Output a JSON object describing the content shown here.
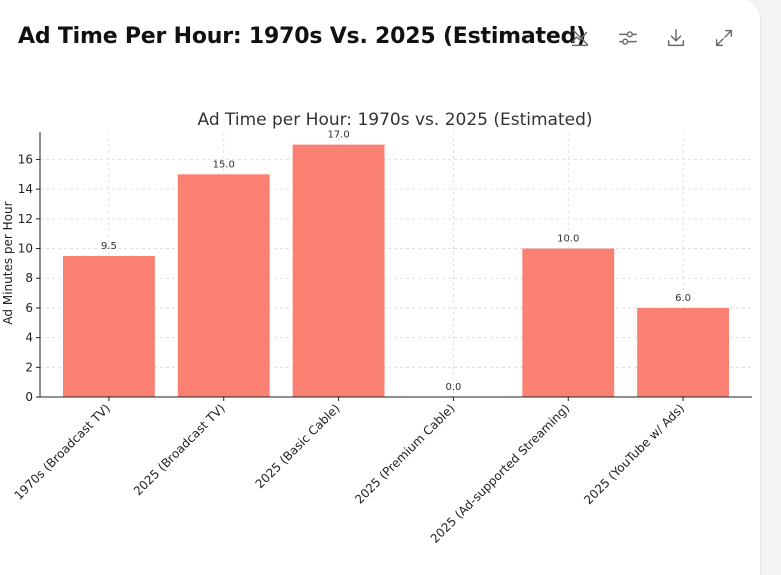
{
  "card": {
    "title": "Ad Time Per Hour: 1970s Vs. 2025 (Estimated)"
  },
  "toolbar": {
    "icons": [
      "hide-chart-icon",
      "sliders-icon",
      "download-icon",
      "expand-icon"
    ]
  },
  "chart_data": {
    "type": "bar",
    "title": "Ad Time per Hour: 1970s vs. 2025 (Estimated)",
    "xlabel": "",
    "ylabel": "Ad Minutes per Hour",
    "categories": [
      "1970s (Broadcast TV)",
      "2025 (Broadcast TV)",
      "2025 (Basic Cable)",
      "2025 (Premium Cable)",
      "2025 (Ad-supported Streaming)",
      "2025 (YouTube w/ Ads)"
    ],
    "values": [
      9.5,
      15.0,
      17.0,
      0.0,
      10.0,
      6.0
    ],
    "value_labels": [
      "9.5",
      "15.0",
      "17.0",
      "0.0",
      "10.0",
      "6.0"
    ],
    "yticks": [
      0,
      2,
      4,
      6,
      8,
      10,
      12,
      14,
      16
    ],
    "ylim": [
      0,
      17.85
    ],
    "grid": true,
    "bar_color": "#FA8072"
  }
}
